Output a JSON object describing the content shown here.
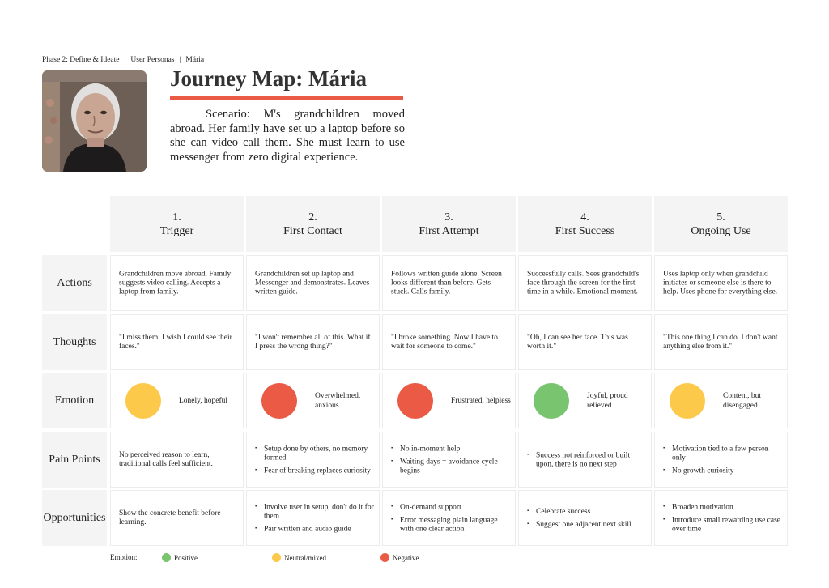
{
  "breadcrumb": [
    "Phase 2: Define & Ideate",
    "User Personas",
    "Mária"
  ],
  "title": "Journey Map: Mária",
  "scenario": "Scenario: M's grandchildren moved abroad. Her family have set up a laptop before so she can video call them. She must learn to use messenger from zero digital experience.",
  "colors": {
    "positive": "#79c46f",
    "neutral": "#fdc94a",
    "negative": "#ea5a45",
    "accent": "#ea5a45"
  },
  "stages": [
    {
      "num": "1.",
      "name": "Trigger"
    },
    {
      "num": "2.",
      "name": "First Contact"
    },
    {
      "num": "3.",
      "name": "First Attempt"
    },
    {
      "num": "4.",
      "name": "First Success"
    },
    {
      "num": "5.",
      "name": "Ongoing Use"
    }
  ],
  "row_labels": {
    "actions": "Actions",
    "thoughts": "Thoughts",
    "emotion": "Emotion",
    "pain_points": "Pain Points",
    "opportunities": "Opportunities"
  },
  "actions": [
    "Grandchildren move abroad. Family suggests video calling. Accepts a laptop from family.",
    "Grandchildren set up laptop and Messenger and demonstrates. Leaves written guide.",
    "Follows written guide alone. Screen looks different than before. Gets stuck. Calls family.",
    "Successfully calls. Sees grandchild's face through the screen for the first time in a while. Emotional moment.",
    "Uses laptop only when grandchild initiates or someone else is there to help. Uses phone for everything else."
  ],
  "thoughts": [
    "\"I miss them. I wish I could see their faces.\"",
    "\"I won't remember all of this. What if I press the wrong thing?\"",
    "\"I broke something. Now I have to wait for someone to come.\"",
    "\"Oh, I can see her face. This was worth it.\"",
    "\"This one thing I can do. I don't want anything else from it.\""
  ],
  "emotions": [
    {
      "label": "Lonely, hopeful",
      "valence": "neutral"
    },
    {
      "label": "Overwhelmed, anxious",
      "valence": "negative"
    },
    {
      "label": "Frustrated, helpless",
      "valence": "negative"
    },
    {
      "label": "Joyful, proud relieved",
      "valence": "positive"
    },
    {
      "label": "Content, but disengaged",
      "valence": "neutral"
    }
  ],
  "pain_points": [
    {
      "text": "No perceived reason to learn, traditional calls feel sufficient."
    },
    {
      "bullets": [
        "Setup done by others, no memory formed",
        "Fear of breaking replaces curiosity"
      ]
    },
    {
      "bullets": [
        "No in-moment help",
        "Waiting days = avoidance cycle begins"
      ]
    },
    {
      "bullets": [
        "Success not reinforced or built upon, there is no next step"
      ]
    },
    {
      "bullets": [
        "Motivation tied to a few person only",
        "No growth curiosity"
      ]
    }
  ],
  "opportunities": [
    {
      "text": "Show the concrete benefit before learning."
    },
    {
      "bullets": [
        "Involve user in setup, don't do it for them",
        "Pair written and audio guide"
      ]
    },
    {
      "bullets": [
        "On-demand support",
        "Error messaging plain language with one clear action"
      ]
    },
    {
      "bullets": [
        "Celebrate success",
        "Suggest one adjacent next skill"
      ]
    },
    {
      "bullets": [
        "Broaden motivation",
        "Introduce small rewarding use case over time"
      ]
    }
  ],
  "legend": {
    "title": "Emotion:",
    "items": [
      {
        "label": "Positive",
        "valence": "positive"
      },
      {
        "label": "Neutral/mixed",
        "valence": "neutral"
      },
      {
        "label": "Negative",
        "valence": "negative"
      }
    ]
  }
}
